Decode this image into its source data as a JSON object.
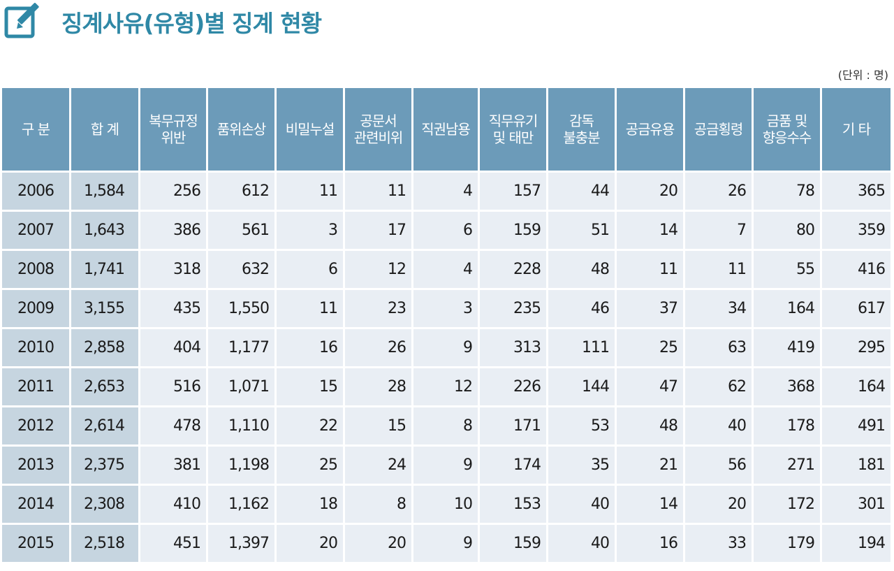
{
  "header": {
    "title": "징계사유(유형)별 징계 현황",
    "unit": "(단위 : 명)",
    "icon": "edit-icon",
    "accent_color": "#2f88a6"
  },
  "table": {
    "columns": [
      [
        "구 분"
      ],
      [
        "합 계"
      ],
      [
        "복무규정",
        "위반"
      ],
      [
        "품위손상"
      ],
      [
        "비밀누설"
      ],
      [
        "공문서",
        "관련비위"
      ],
      [
        "직권남용"
      ],
      [
        "직무유기",
        "및 태만"
      ],
      [
        "감독",
        "불충분"
      ],
      [
        "공금유용"
      ],
      [
        "공금횡령"
      ],
      [
        "금품 및",
        "향응수수"
      ],
      [
        "기 타"
      ]
    ],
    "rows": [
      [
        "2006",
        "1,584",
        "256",
        "612",
        "11",
        "11",
        "4",
        "157",
        "44",
        "20",
        "26",
        "78",
        "365"
      ],
      [
        "2007",
        "1,643",
        "386",
        "561",
        "3",
        "17",
        "6",
        "159",
        "51",
        "14",
        "7",
        "80",
        "359"
      ],
      [
        "2008",
        "1,741",
        "318",
        "632",
        "6",
        "12",
        "4",
        "228",
        "48",
        "11",
        "11",
        "55",
        "416"
      ],
      [
        "2009",
        "3,155",
        "435",
        "1,550",
        "11",
        "23",
        "3",
        "235",
        "46",
        "37",
        "34",
        "164",
        "617"
      ],
      [
        "2010",
        "2,858",
        "404",
        "1,177",
        "16",
        "26",
        "9",
        "313",
        "111",
        "25",
        "63",
        "419",
        "295"
      ],
      [
        "2011",
        "2,653",
        "516",
        "1,071",
        "15",
        "28",
        "12",
        "226",
        "144",
        "47",
        "62",
        "368",
        "164"
      ],
      [
        "2012",
        "2,614",
        "478",
        "1,110",
        "22",
        "15",
        "8",
        "171",
        "53",
        "48",
        "40",
        "178",
        "491"
      ],
      [
        "2013",
        "2,375",
        "381",
        "1,198",
        "25",
        "24",
        "9",
        "174",
        "35",
        "21",
        "56",
        "271",
        "181"
      ],
      [
        "2014",
        "2,308",
        "410",
        "1,162",
        "18",
        "8",
        "10",
        "153",
        "40",
        "14",
        "20",
        "172",
        "301"
      ],
      [
        "2015",
        "2,518",
        "451",
        "1,397",
        "20",
        "20",
        "9",
        "159",
        "40",
        "16",
        "33",
        "179",
        "194"
      ]
    ]
  }
}
